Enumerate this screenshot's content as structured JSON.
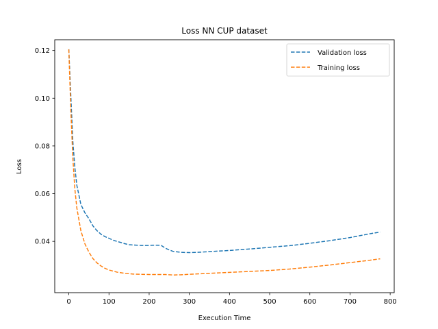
{
  "chart_data": {
    "type": "line",
    "title": "Loss NN CUP dataset",
    "xlabel": "Execution Time",
    "ylabel": "Loss",
    "xlim": [
      -35,
      810
    ],
    "ylim": [
      0.0185,
      0.1245
    ],
    "xticks": [
      0,
      100,
      200,
      300,
      400,
      500,
      600,
      700,
      800
    ],
    "yticks": [
      0.04,
      0.06,
      0.08,
      0.1,
      0.12
    ],
    "ytick_labels": [
      "0.04",
      "0.06",
      "0.08",
      "0.10",
      "0.12"
    ],
    "grid": false,
    "legend_position": "top-right",
    "series": [
      {
        "name": "Validation loss",
        "color": "#1f77b4",
        "style": "dashed",
        "x": [
          0,
          5,
          10,
          15,
          20,
          30,
          40,
          50,
          60,
          70,
          80,
          90,
          100,
          110,
          120,
          130,
          140,
          150,
          160,
          170,
          180,
          190,
          200,
          210,
          220,
          230,
          240,
          250,
          260,
          280,
          300,
          320,
          350,
          400,
          450,
          500,
          520,
          550,
          600,
          650,
          700,
          750,
          775
        ],
        "y": [
          0.1205,
          0.101,
          0.082,
          0.071,
          0.0635,
          0.0555,
          0.052,
          0.0495,
          0.0465,
          0.0445,
          0.043,
          0.042,
          0.0413,
          0.0405,
          0.04,
          0.0395,
          0.039,
          0.0386,
          0.0385,
          0.0384,
          0.0383,
          0.0383,
          0.0383,
          0.0384,
          0.0384,
          0.0383,
          0.0372,
          0.0364,
          0.0358,
          0.0354,
          0.0353,
          0.0354,
          0.0357,
          0.0362,
          0.0368,
          0.0375,
          0.0378,
          0.0382,
          0.0392,
          0.0403,
          0.0416,
          0.0432,
          0.0439
        ]
      },
      {
        "name": "Training loss",
        "color": "#ff7f0e",
        "style": "dashed",
        "x": [
          0,
          5,
          10,
          15,
          20,
          30,
          40,
          50,
          60,
          70,
          80,
          90,
          100,
          120,
          140,
          160,
          180,
          200,
          220,
          240,
          260,
          280,
          300,
          350,
          400,
          450,
          500,
          550,
          600,
          650,
          700,
          750,
          775
        ],
        "y": [
          0.1205,
          0.095,
          0.075,
          0.062,
          0.054,
          0.0445,
          0.039,
          0.0355,
          0.0328,
          0.031,
          0.0297,
          0.0287,
          0.028,
          0.0271,
          0.0266,
          0.0263,
          0.0262,
          0.0261,
          0.0261,
          0.0261,
          0.0259,
          0.026,
          0.0262,
          0.0266,
          0.027,
          0.0274,
          0.0278,
          0.0284,
          0.0292,
          0.0301,
          0.0311,
          0.0321,
          0.0327
        ]
      }
    ]
  }
}
